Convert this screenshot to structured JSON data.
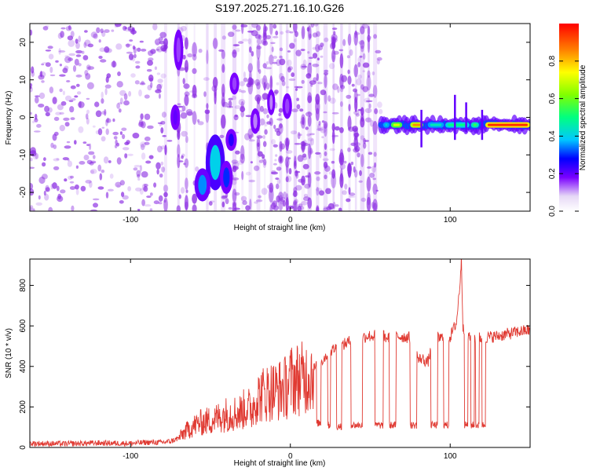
{
  "title": "S197.2025.271.16.10.G26",
  "colors": {
    "line": "#e03a32",
    "axis": "#000000",
    "spec_dots": "#8a2be2"
  },
  "chart_data": [
    {
      "type": "heatmap",
      "name": "spectrogram",
      "xlabel": "Height of straight line (km)",
      "ylabel": "Frequency (Hz)",
      "xlim": [
        -163,
        150
      ],
      "ylim": [
        -25,
        25
      ],
      "xticks": [
        -100,
        0,
        100
      ],
      "yticks": [
        -20,
        -10,
        0,
        10,
        20
      ],
      "colorbar": {
        "label": "Normalized spectral amplitude",
        "range": [
          0.0,
          1.0
        ],
        "ticks": [
          "0.0",
          "0.2",
          "0.4",
          "0.6",
          "0.8"
        ],
        "tick_values": [
          0.0,
          0.2,
          0.4,
          0.6,
          0.8
        ]
      },
      "dominant_signal": {
        "x_start": 57,
        "x_end": 150,
        "freq_hz": -2,
        "peak_amplitude": 0.95
      },
      "features": [
        {
          "x": -47,
          "freq_hz": -12,
          "amplitude": 0.4,
          "w": 10,
          "h": 14
        },
        {
          "x": -55,
          "freq_hz": -18,
          "amplitude": 0.35,
          "w": 8,
          "h": 8
        },
        {
          "x": -40,
          "freq_hz": -16,
          "amplitude": 0.3,
          "w": 6,
          "h": 8
        },
        {
          "x": -37,
          "freq_hz": -6,
          "amplitude": 0.25,
          "w": 5,
          "h": 5
        },
        {
          "x": -72,
          "freq_hz": 0,
          "amplitude": 0.2,
          "w": 4,
          "h": 6
        },
        {
          "x": -70,
          "freq_hz": 18,
          "amplitude": 0.15,
          "w": 4,
          "h": 10
        },
        {
          "x": -35,
          "freq_hz": 9,
          "amplitude": 0.15,
          "w": 4,
          "h": 5
        },
        {
          "x": -22,
          "freq_hz": -1,
          "amplitude": 0.12,
          "w": 4,
          "h": 6
        },
        {
          "x": -12,
          "freq_hz": 4,
          "amplitude": 0.12,
          "w": 3,
          "h": 6
        },
        {
          "x": -2,
          "freq_hz": 3,
          "amplitude": 0.15,
          "w": 4,
          "h": 6
        }
      ]
    },
    {
      "type": "line",
      "name": "snr",
      "xlabel": "Height of straight line (km)",
      "ylabel": "SNR (10 * v/v)",
      "xlim": [
        -163,
        150
      ],
      "ylim": [
        0,
        930
      ],
      "xticks": [
        -100,
        0,
        100
      ],
      "yticks": [
        0,
        200,
        400,
        600,
        800
      ],
      "series": [
        {
          "name": "SNR",
          "x": [
            -163,
            -140,
            -120,
            -100,
            -90,
            -80,
            -75,
            -70,
            -67,
            -62,
            -57,
            -52,
            -47,
            -42,
            -37,
            -32,
            -27,
            -24,
            -22,
            -18,
            -12,
            -8,
            -2,
            0,
            4,
            8,
            12,
            16,
            20,
            24,
            28,
            32,
            36,
            40,
            44,
            48,
            52,
            56,
            60,
            66,
            72,
            78,
            80,
            82,
            86,
            90,
            94,
            100,
            104,
            106,
            107,
            108,
            112,
            118,
            124,
            130,
            136,
            142,
            150
          ],
          "values": [
            20,
            18,
            22,
            20,
            25,
            25,
            30,
            45,
            70,
            100,
            120,
            130,
            140,
            160,
            170,
            170,
            200,
            180,
            240,
            260,
            280,
            280,
            300,
            330,
            340,
            340,
            360,
            400,
            430,
            470,
            490,
            500,
            520,
            530,
            540,
            550,
            550,
            560,
            540,
            550,
            545,
            540,
            430,
            440,
            420,
            540,
            540,
            545,
            620,
            800,
            930,
            600,
            540,
            540,
            545,
            550,
            560,
            570,
            580
          ]
        }
      ],
      "dropouts": [
        {
          "x0": 16.5,
          "x1": 19,
          "level": 120
        },
        {
          "x0": 23.5,
          "x1": 25,
          "level": 110
        },
        {
          "x0": 29,
          "x1": 32,
          "level": 105
        },
        {
          "x0": 38,
          "x1": 45,
          "level": 110
        },
        {
          "x0": 53,
          "x1": 58,
          "level": 110
        },
        {
          "x0": 62,
          "x1": 66,
          "level": 110
        },
        {
          "x0": 75,
          "x1": 79,
          "level": 110
        },
        {
          "x0": 88,
          "x1": 92,
          "level": 110
        },
        {
          "x0": 96,
          "x1": 99,
          "level": 110
        },
        {
          "x0": 109,
          "x1": 111,
          "level": 110
        },
        {
          "x0": 113,
          "x1": 115,
          "level": 110
        },
        {
          "x0": 116,
          "x1": 118,
          "level": 110
        },
        {
          "x0": 120,
          "x1": 122,
          "level": 110
        }
      ]
    }
  ]
}
